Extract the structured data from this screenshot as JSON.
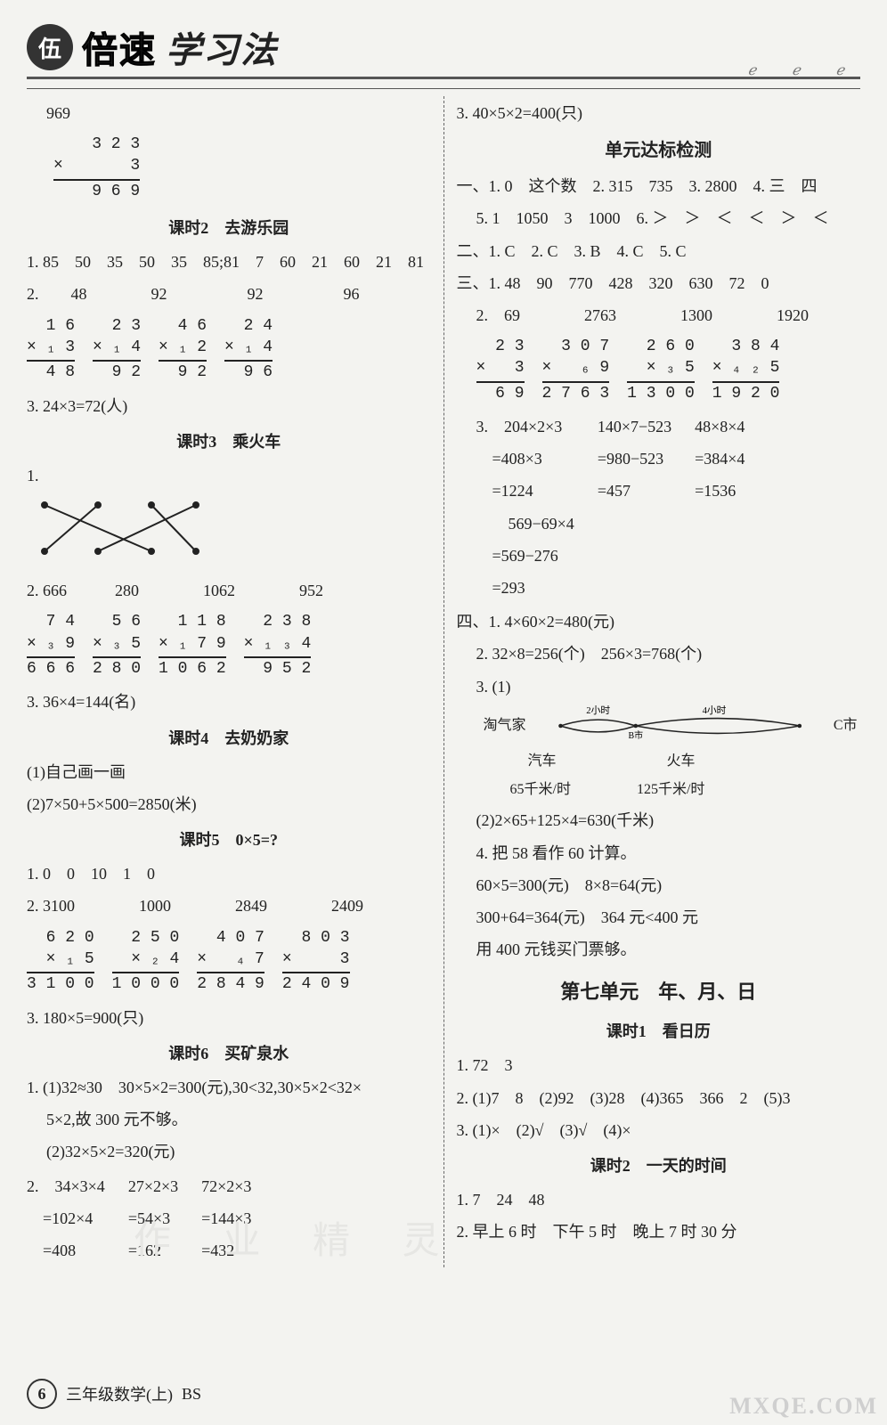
{
  "brand": {
    "badge": "伍",
    "word1": "倍速",
    "word2": "学习法"
  },
  "swirls": "ℯ  ℯ  ℯ",
  "footer": {
    "page": "6",
    "label": "三年级数学(上)",
    "code": "BS"
  },
  "watermark": "MXQE.COM",
  "bg_watermark": "作 业 精 灵",
  "left": {
    "top_num": "969",
    "vmul0": {
      "a": "3 2 3",
      "b": "×       3",
      "r": "9 6 9"
    },
    "k2": {
      "title": "课时2　去游乐园",
      "q1": "1. 85　50　35　50　35　85;81　7　60　21　60　21　81",
      "q2": "2.　　48　　　　92　　　　　92　　　　　96",
      "vmuls": [
        {
          "a": "1 6",
          "b": "× ₁ 3",
          "r": "4 8"
        },
        {
          "a": "2 3",
          "b": "× ₁ 4",
          "r": "9 2"
        },
        {
          "a": "4 6",
          "b": "× ₁ 2",
          "r": "9 2"
        },
        {
          "a": "2 4",
          "b": "× ₁ 4",
          "r": "9 6"
        }
      ],
      "q3": "3. 24×3=72(人)"
    },
    "k3": {
      "title": "课时3　乘火车",
      "q1": "1.",
      "q2": "2. 666　　　280　　　　1062　　　　952",
      "vmuls": [
        {
          "a": "7 4",
          "b": "× ₃ 9",
          "r": "6 6 6"
        },
        {
          "a": "5 6",
          "b": "× ₃ 5",
          "r": "2 8 0"
        },
        {
          "a": "1 1 8",
          "b": "× ₁ 7 9",
          "r": "1 0 6 2"
        },
        {
          "a": "2 3 8",
          "b": "× ₁ ₃ 4",
          "r": "9 5 2"
        }
      ],
      "q3": "3. 36×4=144(名)"
    },
    "k4": {
      "title": "课时4　去奶奶家",
      "l1": "(1)自己画一画",
      "l2": "(2)7×50+5×500=2850(米)"
    },
    "k5": {
      "title": "课时5　0×5=?",
      "q1": "1. 0　0　10　1　0",
      "q2": "2. 3100　　　　1000　　　　2849　　　　2409",
      "vmuls": [
        {
          "a": "6 2 0",
          "b": "× ₁ 5",
          "r": "3 1 0 0"
        },
        {
          "a": "2 5 0",
          "b": "× ₂ 4",
          "r": "1 0 0 0"
        },
        {
          "a": "4 0 7",
          "b": "×   ₄ 7",
          "r": "2 8 4 9"
        },
        {
          "a": "8 0 3",
          "b": "×     3",
          "r": "2 4 0 9"
        }
      ],
      "q3": "3. 180×5=900(只)"
    },
    "k6": {
      "title": "课时6　买矿泉水",
      "q1a": "1. (1)32≈30　30×5×2=300(元),30<32,30×5×2<32×",
      "q1b": "5×2,故 300 元不够。",
      "q1c": "(2)32×5×2=320(元)",
      "q2cols": [
        [
          "2.　34×3×4",
          "　=102×4",
          "　=408"
        ],
        [
          "27×2×3",
          "=54×3",
          "=162"
        ],
        [
          "72×2×3",
          "=144×3",
          "=432"
        ]
      ]
    }
  },
  "right": {
    "top": "3. 40×5×2=400(只)",
    "unit_test": "单元达标检测",
    "yi": {
      "l1": "一、1. 0　这个数　2. 315　735　3. 2800　4. 三　四",
      "l2": "5. 1　1050　3　1000　6. ＞　＞　＜　＜　＞　＜"
    },
    "er": "二、1. C　2. C　3. B　4. C　5. C",
    "san": {
      "l1": "三、1. 48　90　770　428　320　630　72　0",
      "l2": "2.　69　　　　2763　　　　1300　　　　1920",
      "vmuls": [
        {
          "a": "2 3",
          "b": "×   3",
          "r": "6 9"
        },
        {
          "a": "3 0 7",
          "b": "×   ₆ 9",
          "r": "2 7 6 3"
        },
        {
          "a": "2 6 0",
          "b": "× ₃ 5",
          "r": "1 3 0 0"
        },
        {
          "a": "3 8 4",
          "b": "× ₄ ₂ 5",
          "r": "1 9 2 0"
        }
      ],
      "q3cols": [
        [
          "3.　204×2×3",
          "　=408×3",
          "　=1224",
          "　　569−69×4",
          "　=569−276",
          "　=293"
        ],
        [
          "140×7−523",
          "=980−523",
          "=457",
          "",
          "",
          ""
        ],
        [
          "48×8×4",
          "=384×4",
          "=1536",
          "",
          "",
          ""
        ]
      ]
    },
    "si": {
      "l1": "四、1. 4×60×2=480(元)",
      "l2": "2. 32×8=256(个)　256×3=768(个)",
      "l3": "3. (1)",
      "lens": {
        "t1": "2小时",
        "t2": "4小时",
        "left": "淘气家",
        "mid": "B市",
        "right": "C市",
        "sub1": "汽车",
        "sub2": "火车",
        "sp1": "65千米/时",
        "sp2": "125千米/时"
      },
      "l4": "(2)2×65+125×4=630(千米)",
      "l5": "4. 把 58 看作 60 计算。",
      "l6": "60×5=300(元)　8×8=64(元)",
      "l7": "300+64=364(元)　364 元<400 元",
      "l8": "用 400 元钱买门票够。"
    },
    "unit7": "第七单元　年、月、日",
    "k1": {
      "title": "课时1　看日历",
      "q1": "1. 72　3",
      "q2": "2. (1)7　8　(2)92　(3)28　(4)365　366　2　(5)3",
      "q3": "3. (1)×　(2)√　(3)√　(4)×"
    },
    "k2r": {
      "title": "课时2　一天的时间",
      "q1": "1. 7　24　48",
      "q2": "2. 早上 6 时　下午 5 时　晚上 7 时 30 分"
    }
  }
}
